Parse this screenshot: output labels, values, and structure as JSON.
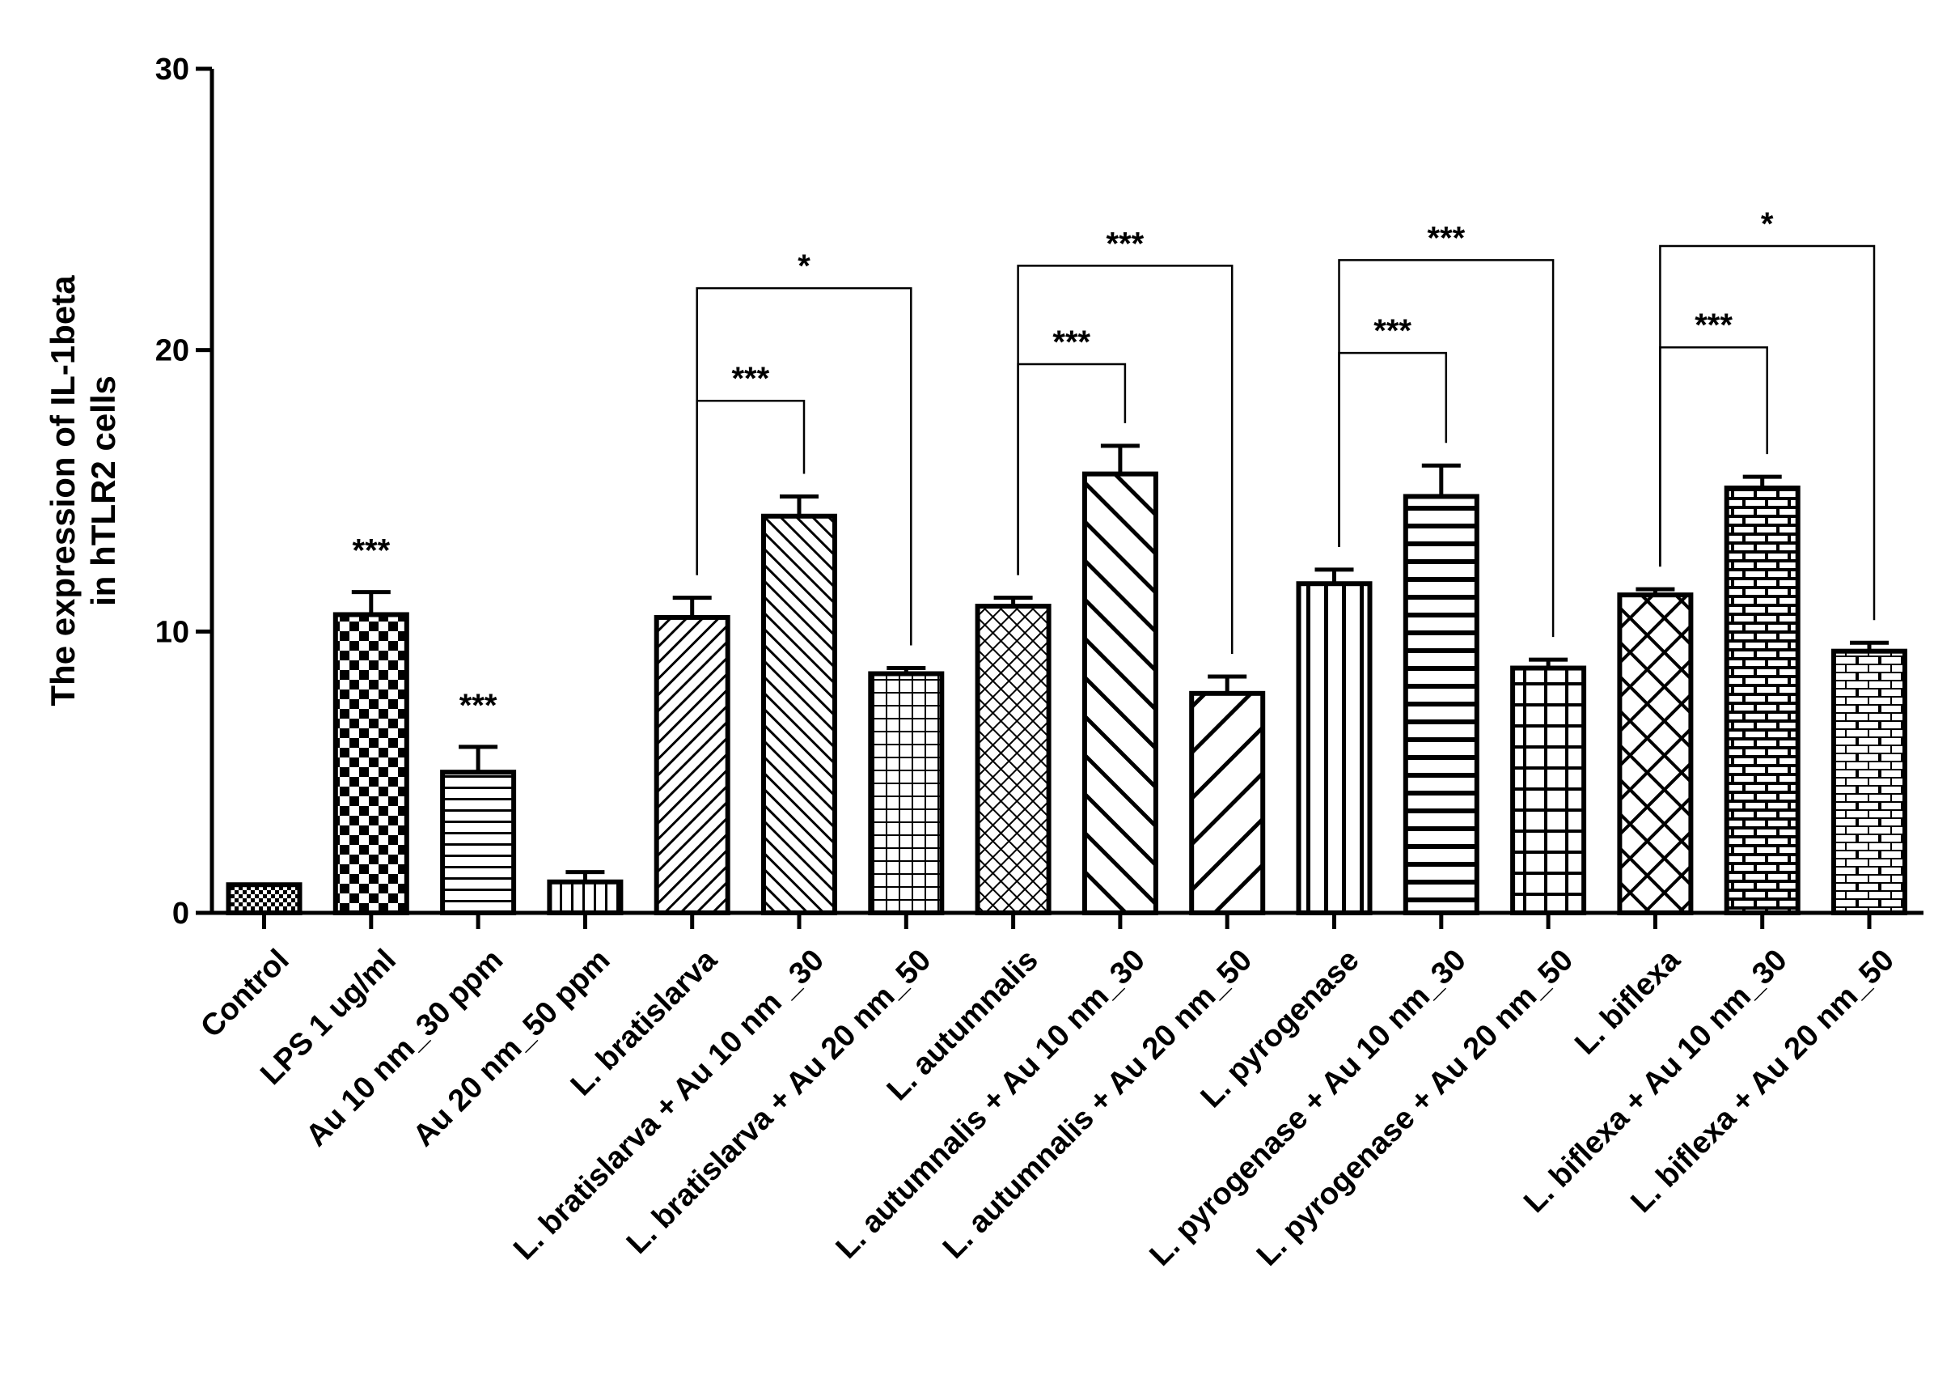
{
  "chart_data": {
    "type": "bar",
    "title": "",
    "xlabel": "",
    "ylabel_lines": [
      "The expression of IL-1beta",
      "in hTLR2 cells"
    ],
    "ylim": [
      0,
      30
    ],
    "yticks": [
      0,
      10,
      20,
      30
    ],
    "grid": false,
    "legend": "none",
    "bar_color": "#000000",
    "categories": [
      "Control",
      "LPS 1 ug/ml",
      "Au 10 nm_30 ppm",
      "Au 20 nm_50 ppm",
      "L. bratislarva",
      "L. bratislarva + Au 10 nm _30",
      "L. bratislarva + Au 20 nm_50",
      "L. autumnalis",
      "L. autumnalis + Au 10 nm_30",
      "L. autumnalis + Au 20 nm_50",
      "L. pyrogenase",
      "L. pyrogenase + Au 10 nm_30",
      "L. pyrogenase + Au 20 nm_50",
      "L. biflexa",
      "L. biflexa + Au 10 nm_30",
      "L. biflexa + Au 20 nm_50"
    ],
    "values": [
      1.0,
      10.6,
      5.0,
      1.1,
      10.5,
      14.1,
      8.5,
      10.9,
      15.6,
      7.8,
      11.7,
      14.8,
      8.7,
      11.3,
      15.1,
      9.3
    ],
    "errors": [
      0.0,
      0.8,
      0.9,
      0.35,
      0.7,
      0.7,
      0.2,
      0.3,
      1.0,
      0.6,
      0.5,
      1.1,
      0.3,
      0.2,
      0.4,
      0.3
    ],
    "patterns": [
      "checkfine",
      "checker",
      "hlines",
      "vlinesfine",
      "diagup",
      "diagdown",
      "grid",
      "crossfine",
      "diagdownwide",
      "diagupwide",
      "vlines",
      "hlinesthick",
      "gridwide",
      "crosswide",
      "brickdark",
      "bricklight"
    ],
    "bar_stars": [
      {
        "index": 1,
        "text": "***"
      },
      {
        "index": 2,
        "text": "***"
      }
    ],
    "comparisons": [
      {
        "from": 4,
        "to": 6,
        "y": 22.2,
        "text": "*"
      },
      {
        "from": 4,
        "to": 5,
        "y": 18.2,
        "text": "***"
      },
      {
        "from": 7,
        "to": 9,
        "y": 23.0,
        "text": "***"
      },
      {
        "from": 7,
        "to": 8,
        "y": 19.5,
        "text": "***"
      },
      {
        "from": 10,
        "to": 12,
        "y": 23.2,
        "text": "***"
      },
      {
        "from": 10,
        "to": 11,
        "y": 19.9,
        "text": "***"
      },
      {
        "from": 13,
        "to": 15,
        "y": 23.7,
        "text": "*"
      },
      {
        "from": 13,
        "to": 14,
        "y": 20.1,
        "text": "***"
      }
    ]
  }
}
